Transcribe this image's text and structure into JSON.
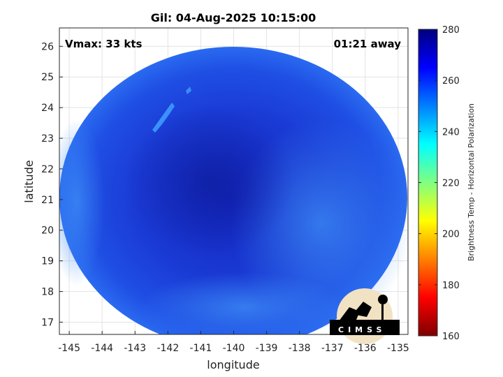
{
  "chart_data": {
    "type": "heatmap",
    "title": "Gil: 04-Aug-2025 10:15:00",
    "xlabel": "longitude",
    "ylabel": "latitude",
    "xlim": [
      -145.3,
      -134.7
    ],
    "ylim": [
      16.6,
      26.6
    ],
    "x_ticks": [
      -145,
      -144,
      -143,
      -142,
      -141,
      -140,
      -139,
      -138,
      -137,
      -136,
      -135
    ],
    "y_ticks": [
      17,
      18,
      19,
      20,
      21,
      22,
      23,
      24,
      25,
      26
    ],
    "grid": true,
    "annotations": {
      "left": "Vmax: 33 kts",
      "right": "01:21 away"
    },
    "colorbar": {
      "label": "Brightness Temp - Horizontal Polarization",
      "range": [
        160,
        280
      ],
      "ticks": [
        160,
        180,
        200,
        220,
        240,
        260,
        280
      ],
      "colormap": [
        "#7f0000",
        "#ff0000",
        "#ff8000",
        "#ffff00",
        "#80ff80",
        "#00ffff",
        "#0080ff",
        "#0000ff",
        "#00007f"
      ]
    },
    "swath": {
      "center_lon": -140.05,
      "center_lat": 21.3,
      "dominant_value_range": [
        255,
        270
      ]
    },
    "logo_text": "CIMSS"
  }
}
